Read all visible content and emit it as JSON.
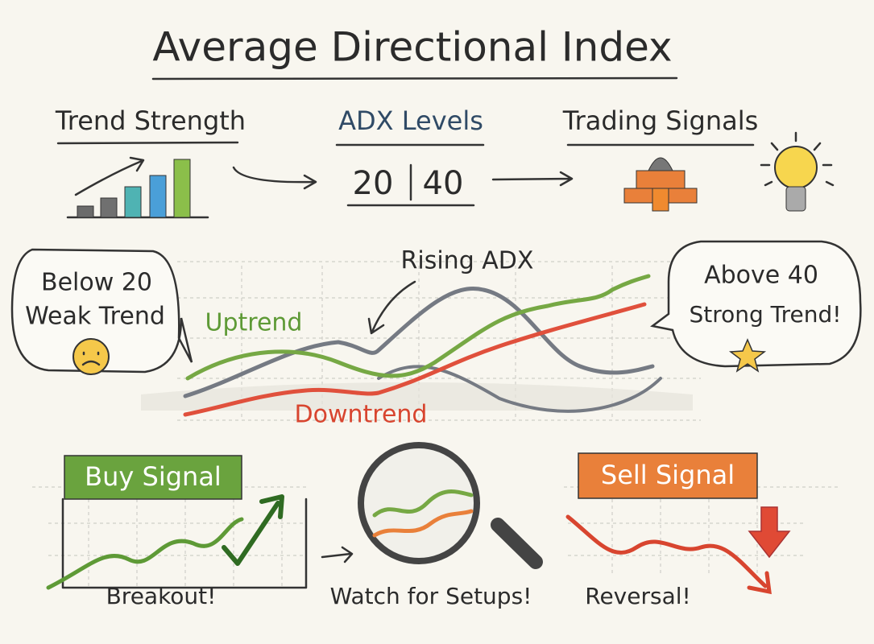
{
  "title": "Average Directional Index",
  "panels": {
    "trend_strength": "Trend Strength",
    "adx_levels": {
      "label": "ADX Levels",
      "low": 20,
      "high": 40
    },
    "trading_signals": "Trading Signals"
  },
  "chart": {
    "label": "Rising ADX",
    "uptrend": "Uptrend",
    "downtrend": "Downtrend",
    "left_bubble": [
      "Below 20",
      "Weak Trend"
    ],
    "right_bubble": [
      "Above 40",
      "Strong Trend!"
    ]
  },
  "signals": {
    "buy": "Buy Signal",
    "buy_note": "Breakout!",
    "watch_note": "Watch for Setups!",
    "sell": "Sell Signal",
    "sell_note": "Reversal!"
  }
}
